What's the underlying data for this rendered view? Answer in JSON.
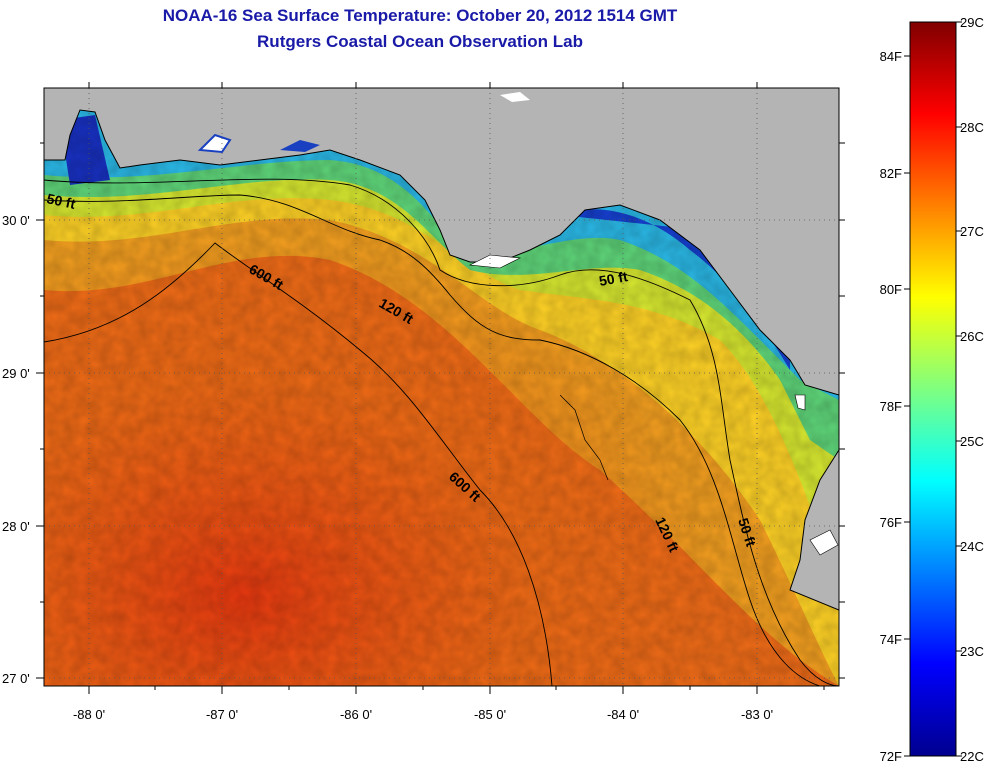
{
  "title_line1": "NOAA-16 Sea Surface Temperature:  October 20, 2012 1514 GMT",
  "title_line2": "Rutgers Coastal Ocean Observation Lab",
  "map": {
    "x_tick_labels": [
      "-88 0'",
      "-87 0'",
      "-86 0'",
      "-85 0'",
      "-84 0'",
      "-83 0'"
    ],
    "y_tick_labels": [
      "30 0'",
      "29 0'",
      "28 0'",
      "27 0'"
    ],
    "contour_labels": [
      {
        "text": "50 ft",
        "id": "c50a"
      },
      {
        "text": "600 ft",
        "id": "c600a"
      },
      {
        "text": "120 ft",
        "id": "c120a"
      },
      {
        "text": "50 ft",
        "id": "c50b"
      },
      {
        "text": "600 ft",
        "id": "c600b"
      },
      {
        "text": "120 ft",
        "id": "c120b"
      },
      {
        "text": "50 ft",
        "id": "c50c"
      }
    ],
    "land_color": "#b4b4b4"
  },
  "colorbar": {
    "celsius_labels": [
      "29C",
      "28C",
      "27C",
      "26C",
      "25C",
      "24C",
      "23C",
      "22C"
    ],
    "fahrenheit_labels": [
      "84F",
      "82F",
      "80F",
      "78F",
      "76F",
      "74F",
      "72F"
    ],
    "range_c": [
      22,
      29
    ],
    "range_f": [
      72,
      84.2
    ],
    "colormap": "jet"
  }
}
